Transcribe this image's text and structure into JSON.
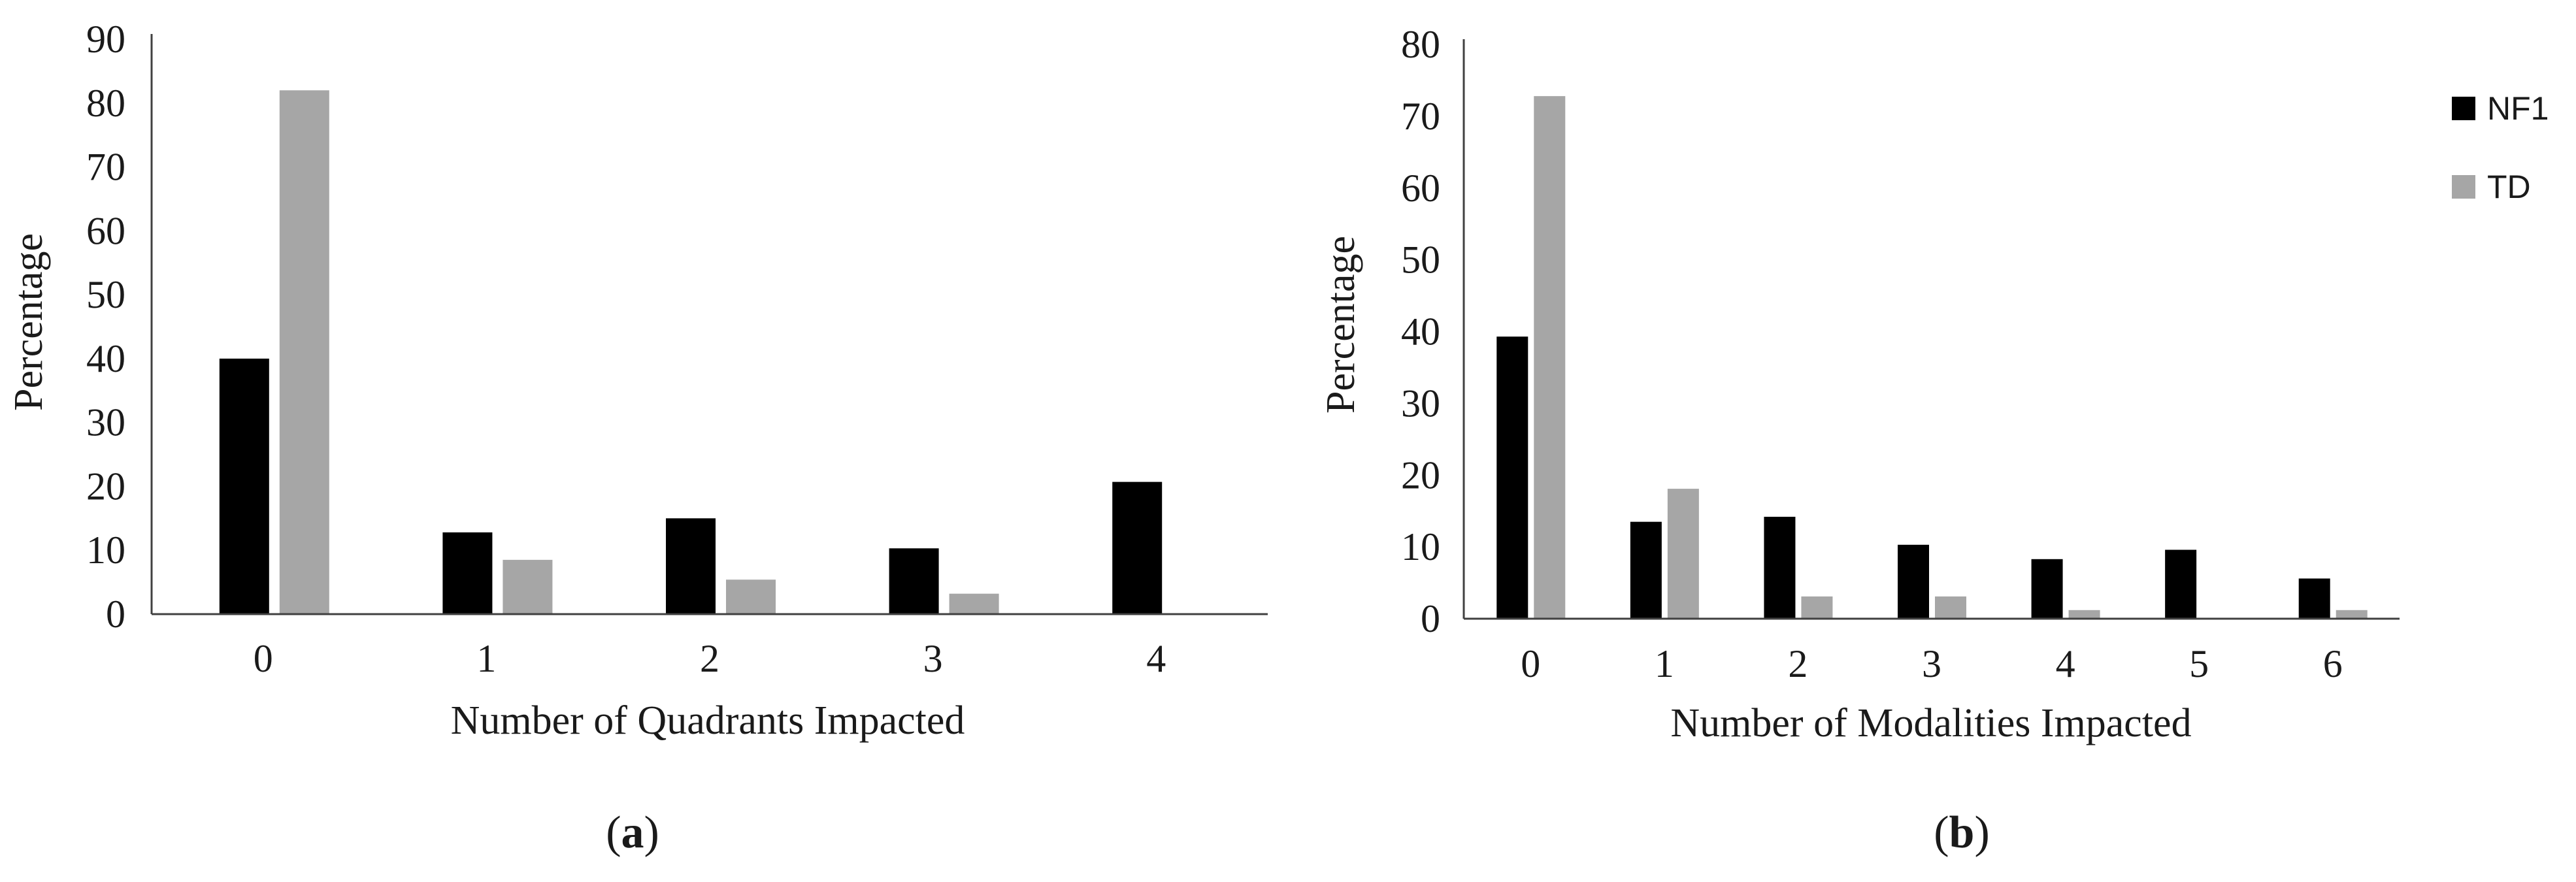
{
  "colors": {
    "NF1": "#000000",
    "TD": "#a6a6a6",
    "axis": "#404040"
  },
  "legend": {
    "placement": "right",
    "entries": [
      "NF1",
      "TD"
    ]
  },
  "chart_data": [
    {
      "type": "bar",
      "panel_label": "a",
      "title": "",
      "xlabel": "Number of Quadrants Impacted",
      "ylabel": "Percentage",
      "categories": [
        "0",
        "1",
        "2",
        "3",
        "4"
      ],
      "ylim": [
        0,
        90
      ],
      "yticks": [
        "0",
        "10",
        "20",
        "30",
        "40",
        "50",
        "60",
        "70",
        "80",
        "90"
      ],
      "grid": false,
      "series": [
        {
          "name": "NF1",
          "values": [
            40.0,
            12.8,
            15.0,
            10.3,
            20.7
          ]
        },
        {
          "name": "TD",
          "values": [
            82.0,
            8.5,
            5.4,
            3.2,
            0
          ]
        }
      ]
    },
    {
      "type": "bar",
      "panel_label": "b",
      "title": "",
      "xlabel": "Number of Modalities Impacted",
      "ylabel": "Percentage",
      "categories": [
        "0",
        "1",
        "2",
        "3",
        "4",
        "5",
        "6"
      ],
      "ylim": [
        0,
        80
      ],
      "yticks": [
        "0",
        "10",
        "20",
        "30",
        "40",
        "50",
        "60",
        "70",
        "80"
      ],
      "grid": false,
      "series": [
        {
          "name": "NF1",
          "values": [
            39.3,
            13.5,
            14.2,
            10.3,
            8.3,
            9.6,
            5.6
          ]
        },
        {
          "name": "TD",
          "values": [
            72.8,
            18.1,
            3.1,
            3.1,
            1.2,
            0,
            1.2
          ]
        }
      ]
    }
  ]
}
